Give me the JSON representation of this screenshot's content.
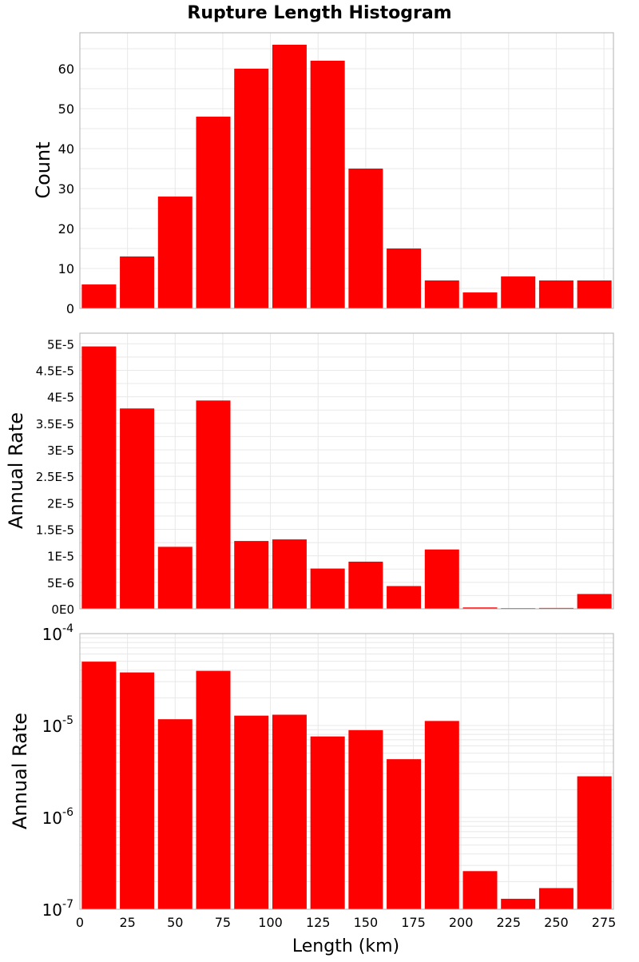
{
  "figure_title": "Rupture Length Histogram",
  "x_axis_label": "Length (km)",
  "colors": {
    "bar": "#ff0000",
    "grid": "#e8e8e8",
    "frame": "#b0b0b0"
  },
  "chart_data": [
    {
      "type": "bar",
      "ylabel": "Count",
      "x": [
        10,
        30,
        50,
        70,
        90,
        110,
        130,
        150,
        170,
        190,
        210,
        230,
        250,
        270
      ],
      "values": [
        6,
        13,
        28,
        48,
        60,
        66,
        62,
        35,
        15,
        7,
        4,
        8,
        7,
        7
      ],
      "xlim": [
        0,
        280
      ],
      "ylim": [
        0,
        69
      ],
      "yticks": [
        0,
        10,
        20,
        30,
        40,
        50,
        60
      ],
      "ytick_labels": [
        "0",
        "10",
        "20",
        "30",
        "40",
        "50",
        "60"
      ],
      "grid": true
    },
    {
      "type": "bar",
      "ylabel": "Annual Rate",
      "x": [
        10,
        30,
        50,
        70,
        90,
        110,
        130,
        150,
        170,
        190,
        210,
        230,
        250,
        270
      ],
      "values": [
        4.95e-05,
        3.78e-05,
        1.17e-05,
        3.93e-05,
        1.28e-05,
        1.31e-05,
        7.6e-06,
        8.9e-06,
        4.3e-06,
        1.12e-05,
        2.6e-07,
        1.3e-07,
        1.7e-07,
        2.8e-06
      ],
      "xlim": [
        0,
        280
      ],
      "ylim": [
        0,
        5.2e-05
      ],
      "yticks": [
        0,
        5e-06,
        1e-05,
        1.5e-05,
        2e-05,
        2.5e-05,
        3e-05,
        3.5e-05,
        4e-05,
        4.5e-05,
        5e-05
      ],
      "ytick_labels": [
        "0E0",
        "5E-6",
        "1E-5",
        "1.5E-5",
        "2E-5",
        "2.5E-5",
        "3E-5",
        "3.5E-5",
        "4E-5",
        "4.5E-5",
        "5E-5"
      ],
      "grid": true
    },
    {
      "type": "bar",
      "ylabel": "Annual Rate",
      "yscale": "log",
      "x": [
        10,
        30,
        50,
        70,
        90,
        110,
        130,
        150,
        170,
        190,
        210,
        230,
        250,
        270
      ],
      "values": [
        4.95e-05,
        3.78e-05,
        1.17e-05,
        3.93e-05,
        1.28e-05,
        1.31e-05,
        7.6e-06,
        8.9e-06,
        4.3e-06,
        1.12e-05,
        2.6e-07,
        1.3e-07,
        1.7e-07,
        2.8e-06
      ],
      "xlim": [
        0,
        280
      ],
      "ylim": [
        1e-07,
        0.0001
      ],
      "yticks": [
        1e-07,
        1e-06,
        1e-05,
        0.0001
      ],
      "ytick_bases": [
        "10",
        "10",
        "10",
        "10"
      ],
      "ytick_exponents": [
        "-7",
        "-6",
        "-5",
        "-4"
      ],
      "xticks": [
        0,
        25,
        50,
        75,
        100,
        125,
        150,
        175,
        200,
        225,
        250,
        275
      ],
      "xtick_labels": [
        "0",
        "25",
        "50",
        "75",
        "100",
        "125",
        "150",
        "175",
        "200",
        "225",
        "250",
        "275"
      ],
      "grid": true
    }
  ]
}
